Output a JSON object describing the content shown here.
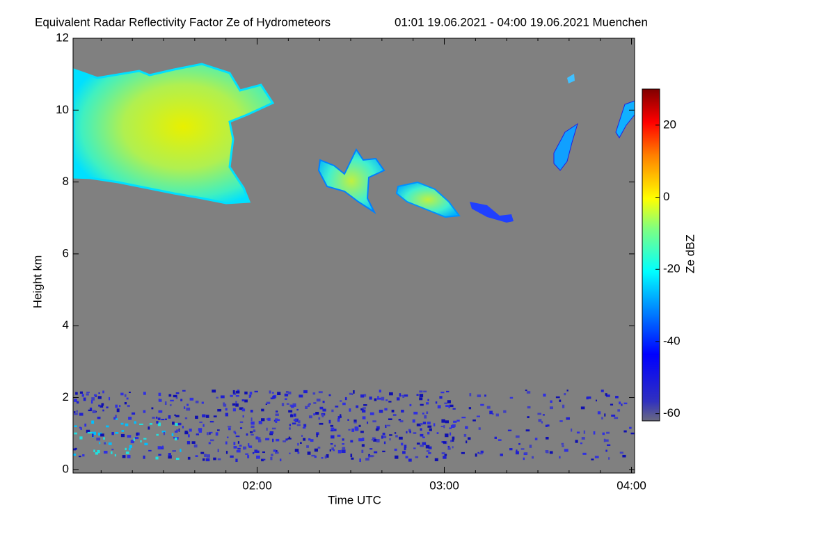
{
  "chart_data": {
    "type": "heatmap",
    "title": "Equivalent Radar Reflectivity Factor Ze of Hydrometeors",
    "subtitle": "01:01 19.06.2021 - 04:00 19.06.2021 Muenchen",
    "xlabel": "Time UTC",
    "ylabel": "Height km",
    "xlim": [
      61,
      241
    ],
    "xticks": [
      {
        "value": 120,
        "label": "02:00"
      },
      {
        "value": 180,
        "label": "03:00"
      },
      {
        "value": 240,
        "label": "04:00"
      }
    ],
    "ylim": [
      -0.1,
      12
    ],
    "yticks": [
      0,
      2,
      4,
      6,
      8,
      10,
      12
    ],
    "colorbar": {
      "label": "Ze dBZ",
      "lim": [
        -62,
        30
      ],
      "ticks": [
        -60,
        -40,
        -20,
        0,
        20
      ]
    },
    "background": "#808080"
  }
}
